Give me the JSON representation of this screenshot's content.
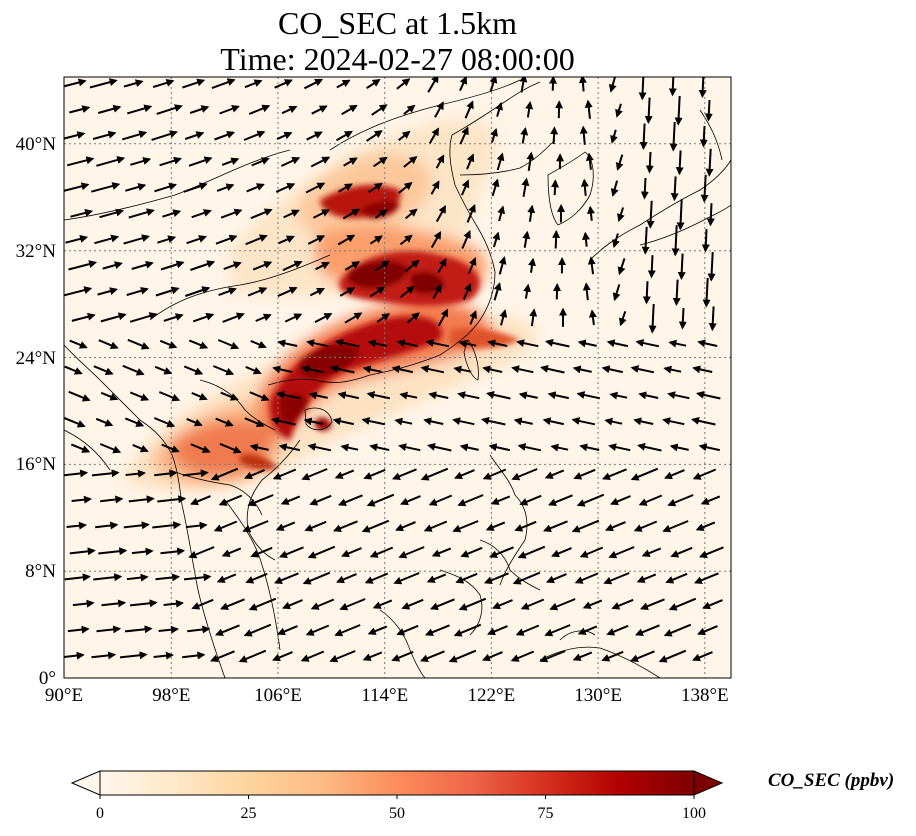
{
  "title": {
    "line1": "CO_SEC at 1.5km",
    "line2": "Time: 2024-02-27 08:00:00"
  },
  "map": {
    "lon_range": [
      90,
      140
    ],
    "lat_range": [
      0,
      45
    ],
    "gridlines": "dotted",
    "lon_ticks": [
      "90°E",
      "98°E",
      "106°E",
      "114°E",
      "122°E",
      "130°E",
      "138°E"
    ],
    "lat_ticks": [
      "0°",
      "8°N",
      "16°N",
      "24°N",
      "32°N",
      "40°N"
    ]
  },
  "colorbar": {
    "label": "CO_SEC (ppbv)",
    "ticks": [
      "0",
      "25",
      "50",
      "75",
      "100"
    ],
    "range": [
      0,
      100
    ],
    "colormap": "OrRd",
    "colors": [
      "#fff7ec",
      "#fee8c8",
      "#fdd49e",
      "#fdbb84",
      "#fc8d59",
      "#ef6548",
      "#d7301f",
      "#b30000",
      "#7f0000"
    ],
    "extend": "both"
  }
}
